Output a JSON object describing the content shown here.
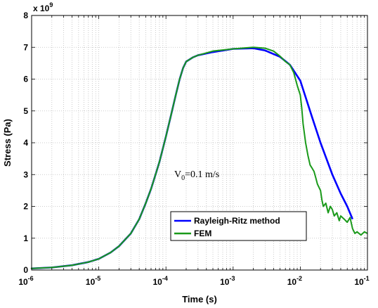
{
  "chart_data": {
    "type": "line",
    "xlabel": "Time (s)",
    "ylabel": "Stress (Pa)",
    "x_scale": "log",
    "xlim": [
      1e-06,
      0.1
    ],
    "ylim": [
      0,
      8000000000.0
    ],
    "y_exponent_label": "x 10",
    "y_exponent_power": "9",
    "xtick_base": "10",
    "xticks": [
      {
        "value": 1e-06,
        "exp": "-6"
      },
      {
        "value": 1e-05,
        "exp": "-5"
      },
      {
        "value": 0.0001,
        "exp": "-4"
      },
      {
        "value": 0.001,
        "exp": "-3"
      },
      {
        "value": 0.01,
        "exp": "-2"
      },
      {
        "value": 0.1,
        "exp": "-1"
      }
    ],
    "yticks": [
      "0",
      "1",
      "2",
      "3",
      "4",
      "5",
      "6",
      "7",
      "8"
    ],
    "grid": true,
    "legend_position": "lower-center",
    "annotation": {
      "prefix": "V",
      "subscript": "0",
      "suffix": "=0.1 m/s"
    },
    "series": [
      {
        "name": "Rayleigh-Ritz method",
        "color": "#0000ff",
        "x": [
          1e-06,
          2e-06,
          4e-06,
          7e-06,
          1e-05,
          1.5e-05,
          2e-05,
          3e-05,
          4e-05,
          5e-05,
          6e-05,
          7e-05,
          8e-05,
          0.0001,
          0.00012,
          0.00014,
          0.00016,
          0.00018,
          0.0002,
          0.00025,
          0.0003,
          0.0005,
          0.001,
          0.002,
          0.003,
          0.005,
          0.007,
          0.01,
          0.015,
          0.02,
          0.03,
          0.04,
          0.05,
          0.06
        ],
        "values": [
          50000000.0,
          80000000.0,
          150000000.0,
          250000000.0,
          350000000.0,
          550000000.0,
          750000000.0,
          1150000000.0,
          1600000000.0,
          2100000000.0,
          2550000000.0,
          3000000000.0,
          3400000000.0,
          4200000000.0,
          4900000000.0,
          5500000000.0,
          6000000000.0,
          6350000000.0,
          6550000000.0,
          6680000000.0,
          6750000000.0,
          6850000000.0,
          6950000000.0,
          6970000000.0,
          6900000000.0,
          6700000000.0,
          6450000000.0,
          5950000000.0,
          4800000000.0,
          4000000000.0,
          3000000000.0,
          2400000000.0,
          2000000000.0,
          1600000000.0
        ]
      },
      {
        "name": "FEM",
        "color": "#1a9a1a",
        "x": [
          1e-06,
          2e-06,
          4e-06,
          7e-06,
          1e-05,
          1.5e-05,
          2e-05,
          3e-05,
          4e-05,
          5e-05,
          6e-05,
          7e-05,
          8e-05,
          0.0001,
          0.00012,
          0.00014,
          0.00016,
          0.00018,
          0.0002,
          0.00025,
          0.0003,
          0.0005,
          0.001,
          0.002,
          0.003,
          0.004,
          0.005,
          0.006,
          0.007,
          0.008,
          0.009,
          0.01,
          0.0105,
          0.011,
          0.012,
          0.013,
          0.014,
          0.015,
          0.016,
          0.017,
          0.018,
          0.02,
          0.021,
          0.022,
          0.024,
          0.026,
          0.028,
          0.03,
          0.032,
          0.035,
          0.038,
          0.04,
          0.045,
          0.05,
          0.055,
          0.06,
          0.065,
          0.07,
          0.08,
          0.09,
          0.1
        ],
        "values": [
          50000000.0,
          80000000.0,
          150000000.0,
          250000000.0,
          350000000.0,
          550000000.0,
          750000000.0,
          1150000000.0,
          1600000000.0,
          2100000000.0,
          2550000000.0,
          3000000000.0,
          3400000000.0,
          4200000000.0,
          4900000000.0,
          5500000000.0,
          6000000000.0,
          6350000000.0,
          6550000000.0,
          6680000000.0,
          6750000000.0,
          6880000000.0,
          6950000000.0,
          7000000000.0,
          6970000000.0,
          6880000000.0,
          6720000000.0,
          6550000000.0,
          6450000000.0,
          6200000000.0,
          5800000000.0,
          5500000000.0,
          5100000000.0,
          4600000000.0,
          4000000000.0,
          3600000000.0,
          3300000000.0,
          3200000000.0,
          3100000000.0,
          2900000000.0,
          2700000000.0,
          2500000000.0,
          2200000000.0,
          2000000000.0,
          2100000000.0,
          1800000000.0,
          2000000000.0,
          1900000000.0,
          1700000000.0,
          1800000000.0,
          1550000000.0,
          1700000000.0,
          1600000000.0,
          1500000000.0,
          1650000000.0,
          1300000000.0,
          1150000000.0,
          1200000000.0,
          1100000000.0,
          1200000000.0,
          1150000000.0
        ]
      }
    ]
  }
}
